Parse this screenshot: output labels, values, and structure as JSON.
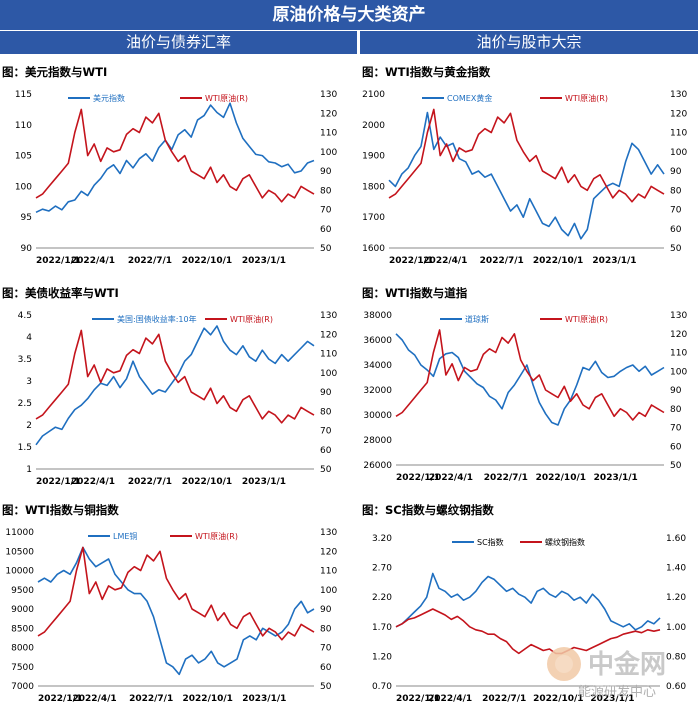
{
  "header": {
    "title": "原油价格与大类资产",
    "left_section": "油价与债券汇率",
    "right_section": "油价与股市大宗"
  },
  "colors": {
    "blue": "#1f6fc0",
    "red": "#c4141c",
    "header_bg": "#2d58a6"
  },
  "watermark": {
    "text": "中金网",
    "sub": "能源研发中心"
  },
  "chart_data": [
    {
      "type": "line",
      "title": "图：美元指数与WTI",
      "x_ticks": [
        "2022/1/1",
        "2022/4/1",
        "2022/7/1",
        "2022/10/1",
        "2023/1/1"
      ],
      "left_ticks": [
        "115",
        "110",
        "105",
        "100",
        "95",
        "90"
      ],
      "right_ticks": [
        "130",
        "120",
        "110",
        "100",
        "90",
        "80",
        "70",
        "60",
        "50"
      ],
      "ylim_left": [
        90,
        115
      ],
      "ylim_right": [
        50,
        130
      ],
      "series": [
        {
          "name": "美元指数",
          "axis": "left",
          "color": "blue",
          "values": [
            95.8,
            96.3,
            96.0,
            96.8,
            96.2,
            97.5,
            97.8,
            99.2,
            98.5,
            100.2,
            101.3,
            102.8,
            103.5,
            102.1,
            104.2,
            103.0,
            104.5,
            105.3,
            104.1,
            106.3,
            107.5,
            106.0,
            108.4,
            109.2,
            108.0,
            110.8,
            111.5,
            113.2,
            112.0,
            111.2,
            113.5,
            110.3,
            107.8,
            106.5,
            105.2,
            105.0,
            104.0,
            103.8,
            103.2,
            103.6,
            102.2,
            102.5,
            103.8,
            104.2
          ]
        },
        {
          "name": "WTI原油(R)",
          "axis": "right",
          "color": "red",
          "values": [
            76,
            78,
            82,
            86,
            90,
            94,
            110,
            122,
            98,
            104,
            95,
            102,
            100,
            101,
            109,
            112,
            110,
            118,
            115,
            120,
            106,
            100,
            95,
            98,
            90,
            88,
            86,
            92,
            84,
            88,
            82,
            80,
            86,
            88,
            82,
            76,
            80,
            78,
            74,
            78,
            76,
            82,
            80,
            78
          ]
        }
      ]
    },
    {
      "type": "line",
      "title": "图：WTI指数与黄金指数",
      "x_ticks": [
        "2022/1/1",
        "2022/4/1",
        "2022/7/1",
        "2022/10/1",
        "2023/1/1"
      ],
      "left_ticks": [
        "2100",
        "2000",
        "1900",
        "1800",
        "1700",
        "1600"
      ],
      "right_ticks": [
        "130",
        "120",
        "110",
        "100",
        "90",
        "80",
        "70",
        "60",
        "50"
      ],
      "ylim_left": [
        1600,
        2100
      ],
      "ylim_right": [
        50,
        130
      ],
      "series": [
        {
          "name": "COMEX黄金",
          "axis": "left",
          "color": "blue",
          "values": [
            1820,
            1800,
            1840,
            1860,
            1900,
            1930,
            2040,
            1920,
            1960,
            1930,
            1940,
            1890,
            1880,
            1840,
            1850,
            1830,
            1840,
            1800,
            1760,
            1720,
            1740,
            1700,
            1760,
            1720,
            1680,
            1670,
            1700,
            1660,
            1640,
            1680,
            1630,
            1660,
            1760,
            1780,
            1800,
            1810,
            1800,
            1880,
            1940,
            1920,
            1880,
            1840,
            1870,
            1840
          ]
        },
        {
          "name": "WTI原油(R)",
          "axis": "right",
          "color": "red",
          "values": [
            76,
            78,
            82,
            86,
            90,
            94,
            110,
            122,
            98,
            104,
            95,
            102,
            100,
            101,
            109,
            112,
            110,
            118,
            115,
            120,
            106,
            100,
            95,
            98,
            90,
            88,
            86,
            92,
            84,
            88,
            82,
            80,
            86,
            88,
            82,
            76,
            80,
            78,
            74,
            78,
            76,
            82,
            80,
            78
          ]
        }
      ]
    },
    {
      "type": "line",
      "title": "图：美债收益率与WTI",
      "x_ticks": [
        "2022/1/1",
        "2022/4/1",
        "2022/7/1",
        "2022/10/1",
        "2023/1/1"
      ],
      "left_ticks": [
        "4.5",
        "4",
        "3.5",
        "3",
        "2.5",
        "2",
        "1.5",
        "1"
      ],
      "right_ticks": [
        "130",
        "120",
        "110",
        "100",
        "90",
        "80",
        "70",
        "60",
        "50"
      ],
      "ylim_left": [
        1,
        4.5
      ],
      "ylim_right": [
        50,
        130
      ],
      "series": [
        {
          "name": "美国:国债收益率:10年",
          "axis": "left",
          "color": "blue",
          "values": [
            1.55,
            1.75,
            1.85,
            1.95,
            1.9,
            2.15,
            2.35,
            2.45,
            2.6,
            2.8,
            2.95,
            2.9,
            3.1,
            2.85,
            3.05,
            3.45,
            3.1,
            2.9,
            2.7,
            2.8,
            2.75,
            2.95,
            3.15,
            3.45,
            3.6,
            3.9,
            4.2,
            4.05,
            4.25,
            3.9,
            3.7,
            3.6,
            3.8,
            3.55,
            3.45,
            3.7,
            3.5,
            3.4,
            3.6,
            3.45,
            3.6,
            3.75,
            3.9,
            3.8
          ]
        },
        {
          "name": "WTI原油(R)",
          "axis": "right",
          "color": "red",
          "values": [
            76,
            78,
            82,
            86,
            90,
            94,
            110,
            122,
            98,
            104,
            95,
            102,
            100,
            101,
            109,
            112,
            110,
            118,
            115,
            120,
            106,
            100,
            95,
            98,
            90,
            88,
            86,
            92,
            84,
            88,
            82,
            80,
            86,
            88,
            82,
            76,
            80,
            78,
            74,
            78,
            76,
            82,
            80,
            78
          ]
        }
      ]
    },
    {
      "type": "line",
      "title": "图：WTI指数与道指",
      "x_ticks": [
        "2022/1/1",
        "2022/4/1",
        "2022/7/1",
        "2022/10/1",
        "2023/1/1"
      ],
      "left_ticks": [
        "38000",
        "36000",
        "34000",
        "32000",
        "30000",
        "28000",
        "26000"
      ],
      "right_ticks": [
        "130",
        "120",
        "110",
        "100",
        "90",
        "80",
        "70",
        "60",
        "50"
      ],
      "ylim_left": [
        26000,
        38000
      ],
      "ylim_right": [
        50,
        130
      ],
      "series": [
        {
          "name": "道琼斯",
          "axis": "left",
          "color": "blue",
          "values": [
            36500,
            36000,
            35200,
            34800,
            34000,
            33600,
            33100,
            34500,
            34900,
            35000,
            34600,
            33500,
            33000,
            32500,
            32200,
            31500,
            31200,
            30500,
            31800,
            32400,
            33200,
            34000,
            32400,
            31000,
            30100,
            29400,
            29200,
            30500,
            31200,
            32400,
            33800,
            33600,
            34300,
            33400,
            33000,
            33100,
            33500,
            33800,
            34000,
            33500,
            33900,
            33200,
            33500,
            33800
          ]
        },
        {
          "name": "WTI原油(R)",
          "axis": "right",
          "color": "red",
          "values": [
            76,
            78,
            82,
            86,
            90,
            94,
            110,
            122,
            98,
            104,
            95,
            102,
            100,
            101,
            109,
            112,
            110,
            118,
            115,
            120,
            106,
            100,
            95,
            98,
            90,
            88,
            86,
            92,
            84,
            88,
            82,
            80,
            86,
            88,
            82,
            76,
            80,
            78,
            74,
            78,
            76,
            82,
            80,
            78
          ]
        }
      ]
    },
    {
      "type": "line",
      "title": "图：WTI指数与铜指数",
      "x_ticks": [
        "2022/1/1",
        "2022/4/1",
        "2022/7/1",
        "2022/10/1",
        "2023/1/1"
      ],
      "left_ticks": [
        "11000",
        "10500",
        "10000",
        "9500",
        "9000",
        "8500",
        "8000",
        "7500",
        "7000"
      ],
      "right_ticks": [
        "130",
        "120",
        "110",
        "100",
        "90",
        "80",
        "70",
        "60",
        "50"
      ],
      "ylim_left": [
        7000,
        11000
      ],
      "ylim_right": [
        50,
        130
      ],
      "series": [
        {
          "name": "LME铜",
          "axis": "left",
          "color": "blue",
          "values": [
            9700,
            9800,
            9700,
            9900,
            10000,
            9900,
            10200,
            10600,
            10300,
            10100,
            10200,
            10300,
            9900,
            9700,
            9500,
            9400,
            9400,
            9200,
            8800,
            8200,
            7600,
            7500,
            7300,
            7700,
            7800,
            7600,
            7700,
            7900,
            7600,
            7500,
            7600,
            7700,
            8200,
            8300,
            8200,
            8500,
            8400,
            8300,
            8400,
            8600,
            9000,
            9200,
            8900,
            9000
          ]
        },
        {
          "name": "WTI原油(R)",
          "axis": "right",
          "color": "red",
          "values": [
            76,
            78,
            82,
            86,
            90,
            94,
            110,
            122,
            98,
            104,
            95,
            102,
            100,
            101,
            109,
            112,
            110,
            118,
            115,
            120,
            106,
            100,
            95,
            98,
            90,
            88,
            86,
            92,
            84,
            88,
            82,
            80,
            86,
            88,
            82,
            76,
            80,
            78,
            74,
            78,
            76,
            82,
            80,
            78
          ]
        }
      ]
    },
    {
      "type": "line",
      "title": "图：SC指数与螺纹钢指数",
      "x_ticks": [
        "2022/1/1",
        "2022/4/1",
        "2022/7/1",
        "2022/10/1",
        "2023/1/1"
      ],
      "left_ticks": [
        "3.20",
        "2.70",
        "2.20",
        "1.70",
        "1.20",
        "0.70"
      ],
      "right_ticks": [
        "1.60",
        "1.40",
        "1.20",
        "1.00",
        "0.80",
        "0.60"
      ],
      "ylim_left": [
        0.7,
        3.2
      ],
      "ylim_right": [
        0.6,
        1.6
      ],
      "series": [
        {
          "name": "SC指数",
          "axis": "left",
          "color": "blue",
          "values": [
            1.7,
            1.75,
            1.85,
            1.95,
            2.05,
            2.2,
            2.6,
            2.35,
            2.3,
            2.2,
            2.25,
            2.15,
            2.2,
            2.3,
            2.45,
            2.55,
            2.5,
            2.4,
            2.3,
            2.35,
            2.25,
            2.2,
            2.1,
            2.3,
            2.35,
            2.25,
            2.2,
            2.3,
            2.25,
            2.15,
            2.2,
            2.1,
            2.25,
            2.15,
            2.0,
            1.8,
            1.75,
            1.7,
            1.75,
            1.65,
            1.7,
            1.8,
            1.75,
            1.85
          ]
        },
        {
          "name": "螺纹钢指数",
          "axis": "right",
          "color": "red",
          "values": [
            1.0,
            1.02,
            1.05,
            1.06,
            1.08,
            1.1,
            1.12,
            1.1,
            1.08,
            1.05,
            1.07,
            1.04,
            1.0,
            0.98,
            0.97,
            0.95,
            0.95,
            0.92,
            0.9,
            0.85,
            0.82,
            0.85,
            0.88,
            0.86,
            0.84,
            0.85,
            0.82,
            0.82,
            0.84,
            0.86,
            0.85,
            0.84,
            0.86,
            0.88,
            0.9,
            0.92,
            0.93,
            0.95,
            0.96,
            0.97,
            0.96,
            0.98,
            0.97,
            0.98
          ]
        }
      ]
    }
  ]
}
